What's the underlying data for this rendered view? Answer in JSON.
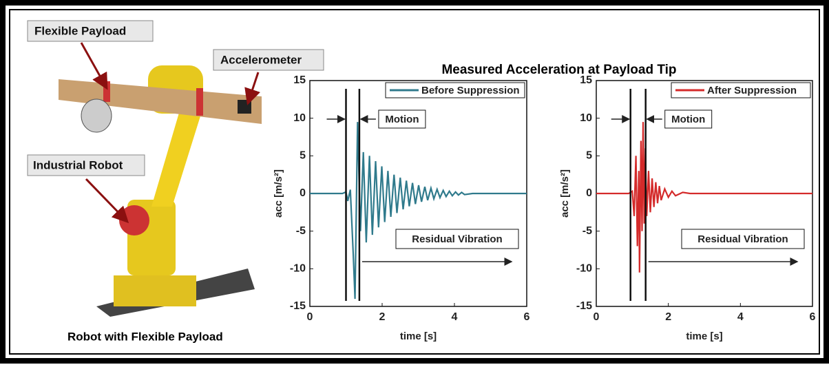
{
  "title": "Measured Acceleration at Payload Tip",
  "photo": {
    "labels": [
      "Flexible Payload",
      "Accelerometer",
      "Industrial Robot"
    ],
    "caption": "Robot with Flexible Payload"
  },
  "chart_data": [
    {
      "type": "line",
      "xlabel": "time [s]",
      "ylabel": "acc [m/s²]",
      "xlim": [
        0,
        6
      ],
      "ylim": [
        -15,
        15
      ],
      "xticks": [
        0,
        2,
        4,
        6
      ],
      "yticks": [
        -15,
        -10,
        -5,
        0,
        5,
        10,
        15
      ],
      "legend": "upper right",
      "motion_lines": [
        1.0,
        1.37
      ],
      "annotations": [
        "Motion",
        "Residual Vibration"
      ],
      "x": [
        0,
        0.9,
        1.0,
        1.05,
        1.12,
        1.2,
        1.25,
        1.32,
        1.4,
        1.48,
        1.56,
        1.65,
        1.73,
        1.82,
        1.9,
        1.99,
        2.07,
        2.16,
        2.24,
        2.33,
        2.41,
        2.5,
        2.58,
        2.67,
        2.75,
        2.84,
        2.92,
        3.01,
        3.09,
        3.18,
        3.26,
        3.35,
        3.43,
        3.52,
        3.6,
        3.69,
        3.77,
        3.86,
        3.94,
        4.03,
        4.11,
        4.2,
        4.28,
        4.5,
        5,
        6
      ],
      "series": [
        {
          "name": "Before Suppression",
          "color": "#2f7a8c",
          "values": [
            0,
            0,
            0.2,
            -1,
            0.5,
            -8,
            -14,
            9.5,
            -5,
            5.5,
            -6.5,
            5,
            -5.5,
            4.3,
            -4.5,
            3.6,
            -3.8,
            3,
            -3.1,
            2.5,
            -2.6,
            2.1,
            -2.1,
            1.7,
            -1.7,
            1.4,
            -1.4,
            1.1,
            -1.1,
            0.9,
            -0.9,
            0.7,
            -0.7,
            0.55,
            -0.55,
            0.4,
            -0.4,
            0.3,
            -0.3,
            0.2,
            -0.2,
            0.15,
            -0.15,
            0,
            0,
            0
          ]
        }
      ]
    },
    {
      "type": "line",
      "xlabel": "time [s]",
      "ylabel": "acc [m/s²]",
      "xlim": [
        0,
        6
      ],
      "ylim": [
        -15,
        15
      ],
      "xticks": [
        0,
        2,
        4,
        6
      ],
      "yticks": [
        -15,
        -10,
        -5,
        0,
        5,
        10,
        15
      ],
      "legend": "upper right",
      "motion_lines": [
        0.95,
        1.37
      ],
      "annotations": [
        "Motion",
        "Residual Vibration"
      ],
      "x": [
        0,
        0.9,
        1.0,
        1.05,
        1.1,
        1.14,
        1.18,
        1.2,
        1.24,
        1.27,
        1.3,
        1.33,
        1.36,
        1.4,
        1.45,
        1.5,
        1.55,
        1.6,
        1.65,
        1.7,
        1.75,
        1.8,
        1.9,
        2.0,
        2.1,
        2.2,
        2.4,
        2.6,
        6
      ],
      "series": [
        {
          "name": "After Suppression",
          "color": "#d42a2a",
          "values": [
            0,
            0,
            0.3,
            -3,
            5,
            -7,
            3,
            -10.5,
            7,
            -5,
            9.5,
            -4,
            6,
            -3,
            3,
            -2.5,
            2,
            -1.8,
            1.5,
            -1.3,
            1,
            -0.9,
            0.6,
            -0.5,
            0.3,
            -0.3,
            0.15,
            0,
            0
          ]
        }
      ]
    }
  ]
}
